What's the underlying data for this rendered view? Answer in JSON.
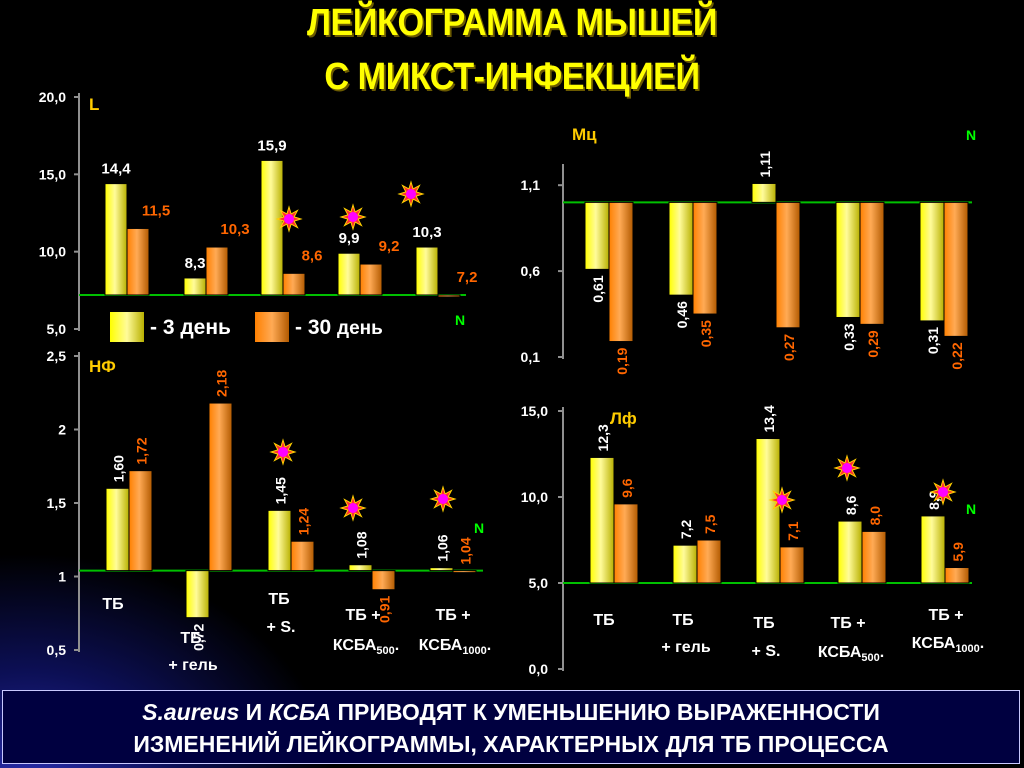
{
  "title": {
    "line1": "ЛЕЙКОГРАММА МЫШЕЙ",
    "line2": "С МИКСТ-ИНФЕКЦИЕЙ"
  },
  "legend": {
    "day3": "- 3 день",
    "day30_prefix": "- 30",
    "day30_suffix": "день"
  },
  "footer": {
    "italic1": "S.aureus",
    "and": " И ",
    "italic2": "КСБА",
    "rest1": " ПРИВОДЯТ К  УМЕНЬШЕНИЮ ВЫРАЖЕННОСТИ",
    "line2": "ИЗМЕНЕНИЙ ЛЕЙКОГРАММЫ, ХАРАКТЕРНЫХ ДЛЯ ТБ ПРОЦЕССА"
  },
  "colors": {
    "day3": "#ffff00",
    "day30": "#ff8000",
    "label_day3": "#ffffff",
    "label_day30": "#ff6600",
    "norm_line": "#00c000",
    "axis": "#909090",
    "star": "#ff00ff"
  },
  "chart_data": [
    {
      "type": "bar",
      "panel": "L",
      "label": "L",
      "norm_label": "N",
      "norm_value": 7.2,
      "y_ticks": [
        "20,0",
        "15,0",
        "10,0",
        "5,0"
      ],
      "ylim": [
        5,
        20
      ],
      "categories": [
        "ТБ",
        "ТБ + гель",
        "ТБ + S.",
        "ТБ + КСБА500",
        "ТБ + КСБА1000"
      ],
      "series": [
        {
          "name": "- 3 день",
          "values": [
            14.4,
            8.3,
            15.9,
            9.9,
            10.3
          ],
          "labels": [
            "14,4",
            "8,3",
            "15,9",
            "9,9",
            "10,3"
          ]
        },
        {
          "name": "- 30 день",
          "values": [
            11.5,
            10.3,
            8.6,
            9.2,
            7.2
          ],
          "labels": [
            "11,5",
            "10,3",
            "8,6",
            "9,2",
            "7,2"
          ]
        }
      ],
      "stars": [
        2,
        3,
        4
      ]
    },
    {
      "type": "bar",
      "panel": "Мц",
      "label": "Мц",
      "norm_label": "N",
      "norm_value": 1.0,
      "y_ticks": [
        "1,1",
        "0,6",
        "0,1"
      ],
      "ylim": [
        0.1,
        1.2
      ],
      "categories": [
        "ТБ",
        "ТБ + гель",
        "ТБ + S.",
        "ТБ + КСБА500",
        "ТБ + КСБА1000"
      ],
      "series": [
        {
          "name": "- 3 день",
          "values": [
            0.61,
            0.46,
            1.11,
            0.33,
            0.31
          ],
          "labels": [
            "0,61",
            "0,46",
            "1,11",
            "0,33",
            "0,31"
          ]
        },
        {
          "name": "- 30 день",
          "values": [
            0.19,
            0.35,
            0.27,
            0.29,
            0.22
          ],
          "labels": [
            "0,19",
            "0,35",
            "0,27",
            "0,29",
            "0,22"
          ]
        }
      ],
      "stars": []
    },
    {
      "type": "bar",
      "panel": "НФ",
      "label": "НФ",
      "norm_label": "N",
      "norm_value": 1.04,
      "y_ticks": [
        "2,5",
        "2",
        "1,5",
        "1",
        "0,5"
      ],
      "ylim": [
        0.5,
        2.5
      ],
      "categories": [
        "ТБ",
        "ТБ + гель",
        "ТБ + S.",
        "ТБ + КСБА500",
        "ТБ + КСБА1000"
      ],
      "series": [
        {
          "name": "- 3 день",
          "values": [
            1.6,
            0.72,
            1.45,
            1.08,
            1.06
          ],
          "labels": [
            "1,60",
            "0,72",
            "1,45",
            "1,08",
            "1,06"
          ]
        },
        {
          "name": "- 30 день",
          "values": [
            1.72,
            2.18,
            1.24,
            0.91,
            1.04
          ],
          "labels": [
            "1,72",
            "2,18",
            "1,24",
            "0,91",
            "1,04"
          ]
        }
      ],
      "stars": [
        2,
        3,
        4
      ]
    },
    {
      "type": "bar",
      "panel": "Лф",
      "label": "Лф",
      "norm_label": "N",
      "norm_value": 5.0,
      "y_ticks": [
        "15,0",
        "10,0",
        "5,0",
        "0,0"
      ],
      "ylim": [
        0,
        15
      ],
      "categories": [
        "ТБ",
        "ТБ + гель",
        "ТБ + S.",
        "ТБ + КСБА500",
        "ТБ + КСБА1000"
      ],
      "series": [
        {
          "name": "- 3 день",
          "values": [
            12.3,
            7.2,
            13.4,
            8.6,
            8.9
          ],
          "labels": [
            "12,3",
            "7,2",
            "13,4",
            "8,6",
            "8,9"
          ]
        },
        {
          "name": "- 30 день",
          "values": [
            9.6,
            7.5,
            7.1,
            8.0,
            5.9
          ],
          "labels": [
            "9,6",
            "7,5",
            "7,1",
            "8,0",
            "5,9"
          ]
        }
      ],
      "stars": [
        2,
        3,
        4
      ]
    }
  ],
  "group_labels": {
    "tb": "ТБ",
    "tb_gel_1": "ТБ",
    "tb_gel_2": "+ гель",
    "tb_s_1": "ТБ",
    "tb_s_2": "+ S.",
    "ksba500_1": "ТБ +",
    "ksba500_2": "КСБА",
    "ksba500_sub": "500",
    "ksba1000_1": "ТБ +",
    "ksba1000_2": "КСБА",
    "ksba1000_sub": "1000",
    "dot": "."
  }
}
